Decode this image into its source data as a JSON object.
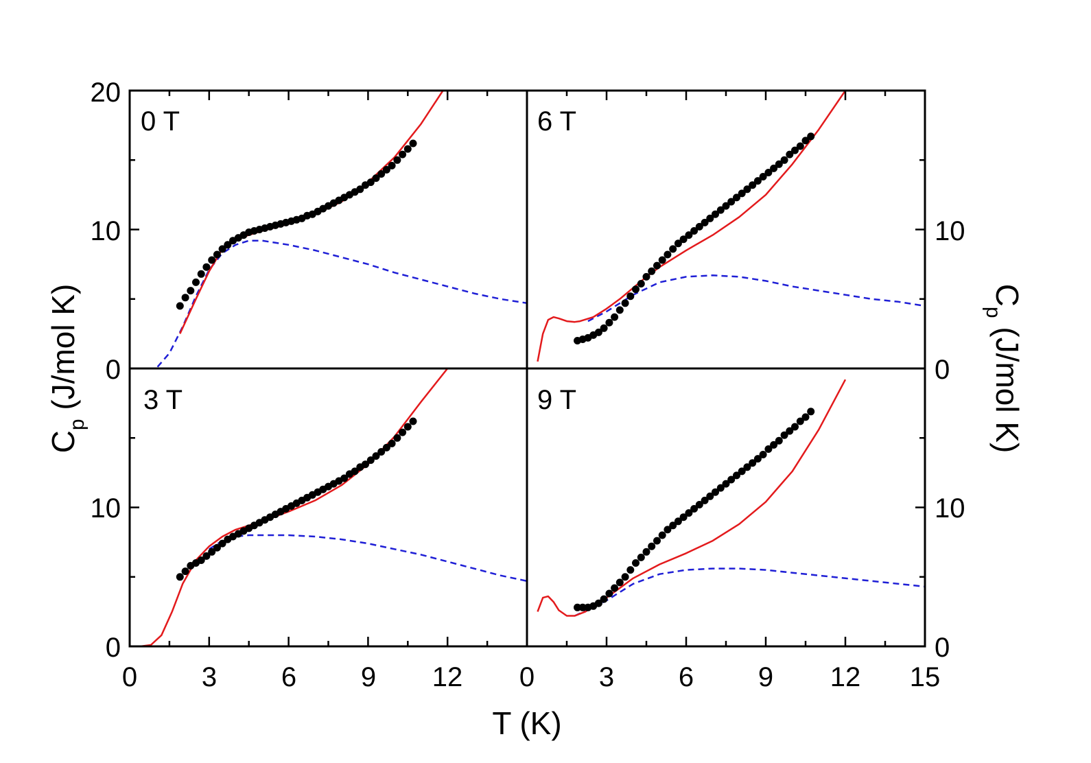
{
  "chart_data": {
    "type": "scatter",
    "layout": "2x2 panels sharing x axis",
    "xlabel": "T (K)",
    "ylabel_left": "C",
    "ylabel_left_sub": "p",
    "ylabel_left_unit": " (J/mol K)",
    "ylabel_right": "C",
    "ylabel_right_sub": "p",
    "ylabel_right_unit": " (J/mol K)",
    "xlim": [
      0,
      15
    ],
    "ylim_top": [
      0,
      20
    ],
    "ylim_bottom": [
      0,
      20
    ],
    "bottom_left_x_ticks": [
      "0",
      "3",
      "6",
      "9",
      "12"
    ],
    "bottom_right_x_ticks": [
      "0",
      "3",
      "6",
      "9",
      "12",
      "15"
    ],
    "left_top_y_ticks": [
      "0",
      "10",
      "20"
    ],
    "left_bottom_y_ticks": [
      "0",
      "10"
    ],
    "right_top_y_ticks": [
      "0",
      "10"
    ],
    "right_bottom_y_ticks": [
      "0",
      "10"
    ],
    "series_styles": [
      {
        "name": "measured",
        "style": "black filled circles",
        "color": "#000000"
      },
      {
        "name": "total model",
        "style": "red solid line",
        "color": "#e31a1c"
      },
      {
        "name": "Schottky contribution",
        "style": "blue dashed line",
        "color": "#1f1fd6"
      }
    ],
    "panels": [
      {
        "id": "0T",
        "label": "0 T",
        "data_x": [
          1.9,
          2.1,
          2.3,
          2.5,
          2.7,
          2.9,
          3.1,
          3.3,
          3.5,
          3.7,
          3.9,
          4.1,
          4.3,
          4.5,
          4.7,
          4.9,
          5.1,
          5.3,
          5.5,
          5.7,
          5.9,
          6.1,
          6.3,
          6.5,
          6.7,
          6.9,
          7.1,
          7.3,
          7.5,
          7.7,
          7.9,
          8.1,
          8.3,
          8.5,
          8.7,
          8.9,
          9.1,
          9.3,
          9.5,
          9.7,
          9.9,
          10.1,
          10.3,
          10.5,
          10.7
        ],
        "data_y": [
          4.5,
          5.1,
          5.6,
          6.2,
          6.8,
          7.3,
          7.8,
          8.2,
          8.6,
          8.9,
          9.2,
          9.4,
          9.6,
          9.8,
          9.9,
          10.0,
          10.1,
          10.2,
          10.3,
          10.4,
          10.5,
          10.6,
          10.7,
          10.8,
          11.0,
          11.1,
          11.3,
          11.5,
          11.7,
          11.9,
          12.1,
          12.3,
          12.5,
          12.7,
          12.9,
          13.2,
          13.4,
          13.7,
          14.0,
          14.3,
          14.6,
          15.0,
          15.4,
          15.8,
          16.2
        ],
        "total_x": [
          1.9,
          2.5,
          3.0,
          3.5,
          4.0,
          4.5,
          5.0,
          6.0,
          7.0,
          8.0,
          9.0,
          10.0,
          11.0,
          12.0
        ],
        "total_y": [
          2.5,
          5.0,
          7.0,
          8.6,
          9.3,
          9.6,
          9.9,
          10.4,
          11.1,
          12.0,
          13.4,
          15.2,
          17.6,
          20.5
        ],
        "schottky_x": [
          0.3,
          1.0,
          1.5,
          2.0,
          2.5,
          3.0,
          3.5,
          4.0,
          4.5,
          5.0,
          6.0,
          7.0,
          8.0,
          9.0,
          10.0,
          11.0,
          12.0,
          13.0,
          14.0,
          15.0
        ],
        "schottky_y": [
          0.0,
          0.0,
          1.1,
          3.0,
          5.2,
          7.1,
          8.3,
          8.9,
          9.2,
          9.2,
          8.9,
          8.5,
          8.0,
          7.5,
          6.9,
          6.4,
          5.9,
          5.4,
          5.0,
          4.7
        ]
      },
      {
        "id": "6T",
        "label": "6 T",
        "data_x": [
          1.9,
          2.1,
          2.3,
          2.5,
          2.7,
          2.9,
          3.1,
          3.3,
          3.5,
          3.7,
          3.9,
          4.1,
          4.3,
          4.5,
          4.7,
          4.9,
          5.1,
          5.3,
          5.5,
          5.7,
          5.9,
          6.1,
          6.3,
          6.5,
          6.7,
          6.9,
          7.1,
          7.3,
          7.5,
          7.7,
          7.9,
          8.1,
          8.3,
          8.5,
          8.7,
          8.9,
          9.1,
          9.3,
          9.5,
          9.7,
          9.9,
          10.1,
          10.3,
          10.5,
          10.7
        ],
        "data_y": [
          2.0,
          2.1,
          2.2,
          2.4,
          2.6,
          2.9,
          3.3,
          3.7,
          4.2,
          4.7,
          5.2,
          5.7,
          6.1,
          6.6,
          7.0,
          7.4,
          7.8,
          8.2,
          8.6,
          9.0,
          9.3,
          9.6,
          9.9,
          10.2,
          10.5,
          10.8,
          11.1,
          11.4,
          11.7,
          12.0,
          12.3,
          12.6,
          12.9,
          13.2,
          13.5,
          13.8,
          14.1,
          14.4,
          14.7,
          15.0,
          15.4,
          15.7,
          16.0,
          16.4,
          16.7
        ],
        "total_x": [
          0.4,
          0.6,
          0.8,
          1.0,
          1.2,
          1.5,
          1.8,
          2.0,
          2.5,
          3.0,
          3.5,
          4.0,
          4.5,
          5.0,
          6.0,
          7.0,
          8.0,
          9.0,
          10.0,
          11.0,
          12.0
        ],
        "total_y": [
          0.5,
          2.5,
          3.5,
          3.7,
          3.6,
          3.4,
          3.35,
          3.4,
          3.7,
          4.3,
          5.0,
          5.8,
          6.6,
          7.3,
          8.5,
          9.6,
          10.9,
          12.5,
          14.7,
          17.2,
          20.0
        ],
        "schottky_x": [
          2.3,
          3.0,
          4.0,
          5.0,
          6.0,
          7.0,
          8.0,
          9.0,
          10.0,
          11.0,
          12.0,
          13.0,
          14.0,
          15.0
        ],
        "schottky_y": [
          3.4,
          4.1,
          5.3,
          6.2,
          6.6,
          6.7,
          6.6,
          6.3,
          5.9,
          5.6,
          5.3,
          5.0,
          4.8,
          4.5
        ]
      },
      {
        "id": "3T",
        "label": "3 T",
        "data_x": [
          1.9,
          2.1,
          2.3,
          2.5,
          2.7,
          2.9,
          3.1,
          3.3,
          3.5,
          3.7,
          3.9,
          4.1,
          4.3,
          4.5,
          4.7,
          4.9,
          5.1,
          5.3,
          5.5,
          5.7,
          5.9,
          6.1,
          6.3,
          6.5,
          6.7,
          6.9,
          7.1,
          7.3,
          7.5,
          7.7,
          7.9,
          8.1,
          8.3,
          8.5,
          8.7,
          8.9,
          9.1,
          9.3,
          9.5,
          9.7,
          9.9,
          10.1,
          10.3,
          10.5,
          10.7
        ],
        "data_y": [
          5.0,
          5.4,
          5.8,
          6.0,
          6.2,
          6.5,
          6.8,
          7.1,
          7.4,
          7.7,
          7.9,
          8.1,
          8.3,
          8.5,
          8.7,
          8.9,
          9.1,
          9.3,
          9.5,
          9.7,
          9.9,
          10.1,
          10.3,
          10.5,
          10.7,
          10.9,
          11.1,
          11.3,
          11.5,
          11.7,
          11.9,
          12.1,
          12.4,
          12.6,
          12.9,
          13.1,
          13.4,
          13.7,
          14.0,
          14.3,
          14.6,
          15.0,
          15.4,
          15.8,
          16.2
        ],
        "total_x": [
          0.4,
          0.8,
          1.2,
          1.6,
          2.0,
          2.5,
          3.0,
          3.5,
          4.0,
          5.0,
          6.0,
          7.0,
          8.0,
          9.0,
          10.0,
          11.0,
          12.0
        ],
        "total_y": [
          0.0,
          0.1,
          0.8,
          2.5,
          4.5,
          6.2,
          7.2,
          7.9,
          8.4,
          9.0,
          9.7,
          10.5,
          11.6,
          13.1,
          15.1,
          17.6,
          20.0
        ],
        "schottky_x": [
          3.0,
          3.5,
          4.0,
          4.5,
          5.0,
          6.0,
          7.0,
          8.0,
          9.0,
          10.0,
          11.0,
          12.0,
          13.0,
          14.0,
          15.0
        ],
        "schottky_y": [
          7.0,
          7.6,
          7.9,
          8.0,
          8.0,
          8.0,
          7.9,
          7.7,
          7.4,
          7.0,
          6.6,
          6.1,
          5.6,
          5.1,
          4.7
        ]
      },
      {
        "id": "9T",
        "label": "9 T",
        "data_x": [
          1.9,
          2.1,
          2.3,
          2.5,
          2.7,
          2.9,
          3.1,
          3.3,
          3.5,
          3.7,
          3.9,
          4.1,
          4.3,
          4.5,
          4.7,
          4.9,
          5.1,
          5.3,
          5.5,
          5.7,
          5.9,
          6.1,
          6.3,
          6.5,
          6.7,
          6.9,
          7.1,
          7.3,
          7.5,
          7.7,
          7.9,
          8.1,
          8.3,
          8.5,
          8.7,
          8.9,
          9.1,
          9.3,
          9.5,
          9.7,
          9.9,
          10.1,
          10.3,
          10.5,
          10.7
        ],
        "data_y": [
          2.8,
          2.8,
          2.8,
          2.9,
          3.1,
          3.4,
          3.8,
          4.2,
          4.6,
          5.0,
          5.5,
          6.0,
          6.4,
          6.8,
          7.2,
          7.6,
          8.0,
          8.4,
          8.7,
          9.0,
          9.3,
          9.6,
          9.9,
          10.2,
          10.5,
          10.8,
          11.1,
          11.4,
          11.7,
          12.0,
          12.3,
          12.6,
          12.9,
          13.2,
          13.5,
          13.8,
          14.2,
          14.5,
          14.8,
          15.2,
          15.5,
          15.8,
          16.2,
          16.5,
          16.9
        ],
        "total_x": [
          0.4,
          0.6,
          0.8,
          1.0,
          1.2,
          1.5,
          1.8,
          2.2,
          2.6,
          3.0,
          3.5,
          4.0,
          5.0,
          6.0,
          7.0,
          8.0,
          9.0,
          10.0,
          11.0,
          12.0
        ],
        "total_y": [
          2.5,
          3.5,
          3.6,
          3.2,
          2.6,
          2.2,
          2.2,
          2.5,
          3.0,
          3.5,
          4.2,
          4.9,
          5.9,
          6.7,
          7.6,
          8.8,
          10.4,
          12.6,
          15.6,
          19.2
        ],
        "schottky_x": [
          1.8,
          2.5,
          3.0,
          3.5,
          4.0,
          5.0,
          6.0,
          7.0,
          8.0,
          9.0,
          10.0,
          11.0,
          12.0,
          13.0,
          14.0,
          15.0
        ],
        "schottky_y": [
          2.2,
          2.8,
          3.3,
          3.9,
          4.5,
          5.2,
          5.5,
          5.6,
          5.6,
          5.5,
          5.3,
          5.1,
          4.9,
          4.7,
          4.5,
          4.3
        ]
      }
    ]
  }
}
